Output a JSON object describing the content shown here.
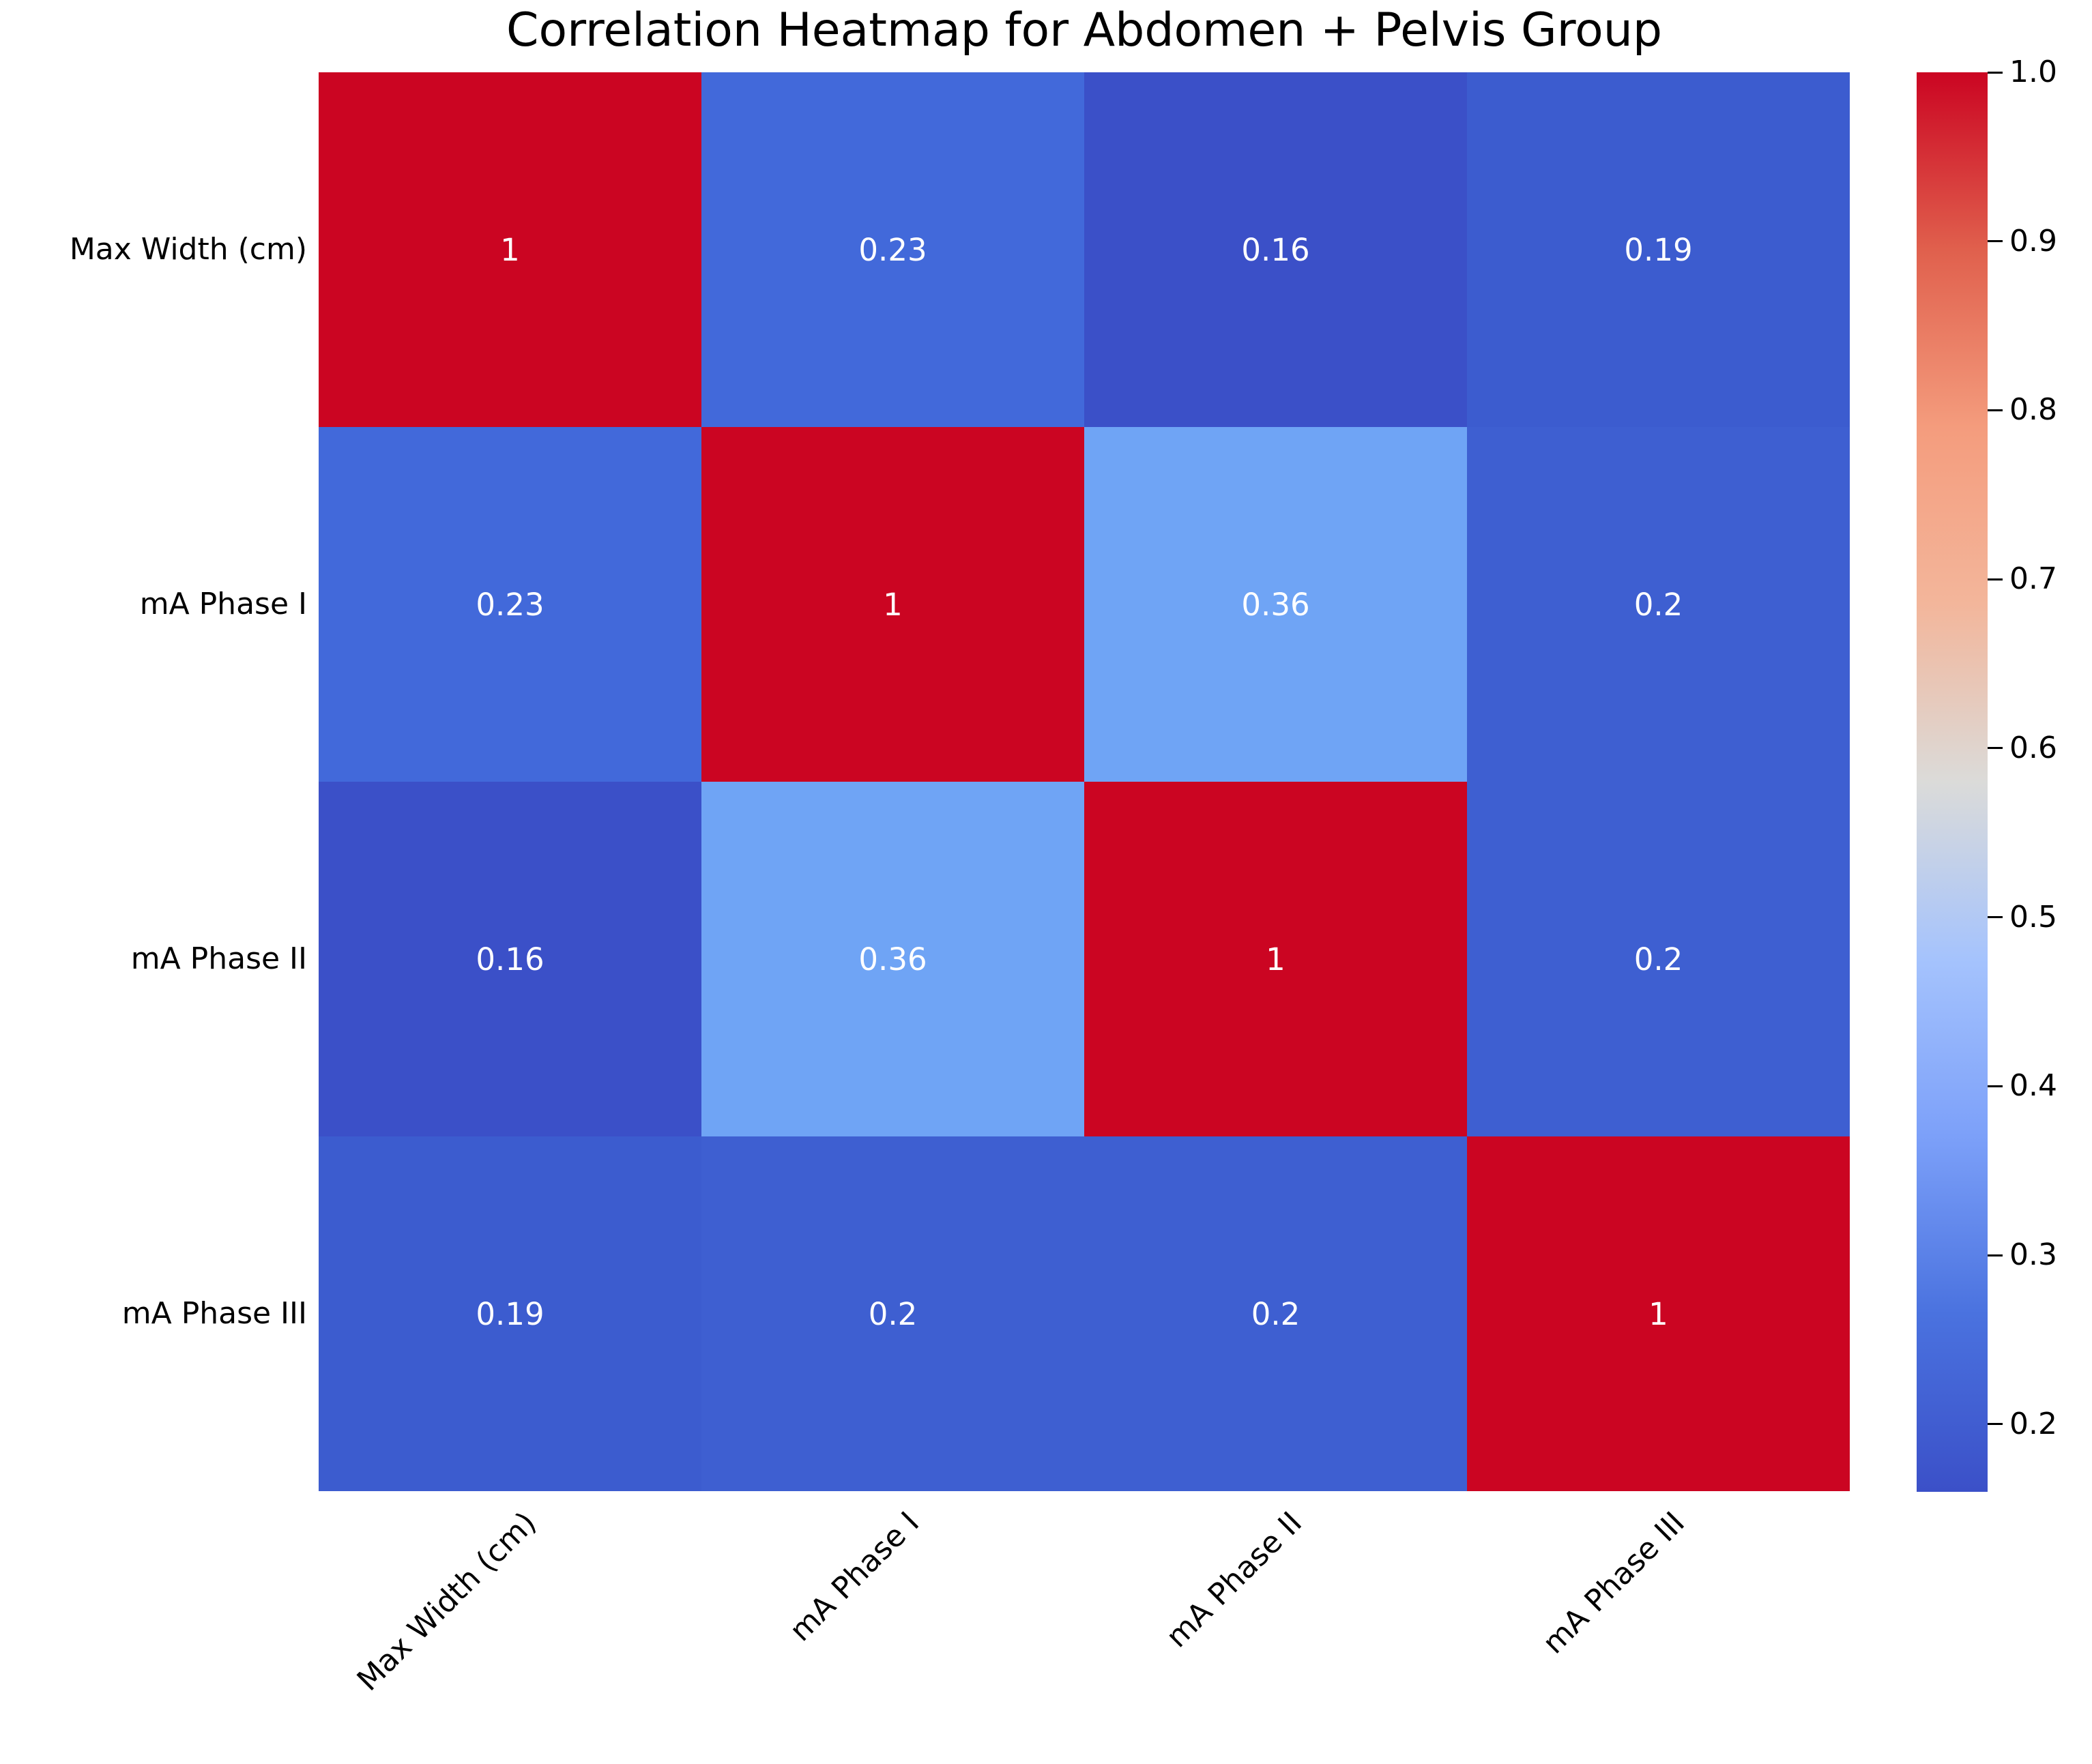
{
  "title": "Correlation Heatmap for Abdomen + Pelvis Group",
  "chart_data": {
    "type": "heatmap",
    "variables": [
      "Max Width (cm)",
      "mA Phase I",
      "mA Phase II",
      "mA Phase III"
    ],
    "matrix": [
      [
        1,
        0.23,
        0.16,
        0.19
      ],
      [
        0.23,
        1,
        0.36,
        0.2
      ],
      [
        0.16,
        0.36,
        1,
        0.2
      ],
      [
        0.19,
        0.2,
        0.2,
        1
      ]
    ],
    "cell_labels": [
      [
        "1",
        "0.23",
        "0.16",
        "0.19"
      ],
      [
        "0.23",
        "1",
        "0.36",
        "0.2"
      ],
      [
        "0.16",
        "0.36",
        "1",
        "0.2"
      ],
      [
        "0.19",
        "0.2",
        "0.2",
        "1"
      ]
    ],
    "colormap": "coolwarm",
    "vmin": 0.16,
    "vmax": 1.0,
    "colorbar_position": "right",
    "colorbar_tick_values": [
      1.0,
      0.9,
      0.8,
      0.7,
      0.6,
      0.5,
      0.4,
      0.3,
      0.2
    ],
    "colorbar_tick_labels": [
      "1.0",
      "0.9",
      "0.8",
      "0.7",
      "0.6",
      "0.5",
      "0.4",
      "0.3",
      "0.2"
    ],
    "grid": false,
    "x_tick_rotation_deg": 45
  },
  "colors": {
    "background": "#ffffff",
    "axis_text": "#000000",
    "annotation_text": "#ffffff",
    "cell_color_map": {
      "1": "#cb0522",
      "0.36": "#6fa4f5",
      "0.23": "#4269da",
      "0.2": "#3e5fd1",
      "0.19": "#3c5ccf",
      "0.16": "#3b50c8"
    },
    "colorbar_gradient_bottom_to_top": [
      "#3b50c8",
      "#4a72df",
      "#7ca0f9",
      "#a5c3fd",
      "#dbdbd9",
      "#f3b69b",
      "#f49c7d",
      "#e0604d",
      "#cb0522"
    ]
  }
}
